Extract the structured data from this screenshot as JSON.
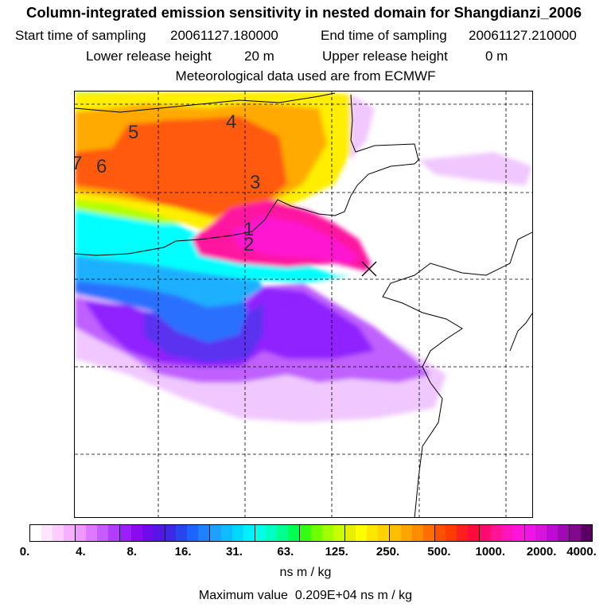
{
  "header": {
    "title": "Column-integrated emission sensitivity in nested domain for Shangdianzi_2006",
    "start_label": "Start time of sampling",
    "start_value": "20061127.180000",
    "end_label": "End time of sampling",
    "end_value": "20061127.210000",
    "lower_label": "Lower release height",
    "lower_value": "20 m",
    "upper_label": "Upper release height",
    "upper_value": "0 m",
    "met_line": "Meteorological data used are from ECMWF"
  },
  "map": {
    "release_marker": "release-site-cross-icon",
    "contour_labels": [
      "5",
      "4",
      "7",
      "6",
      "3",
      "1",
      "2"
    ]
  },
  "colorbar": {
    "ticks": [
      "0.",
      "4.",
      "8.",
      "16.",
      "31.",
      "63.",
      "125.",
      "250.",
      "500.",
      "1000.",
      "2000.",
      "4000."
    ],
    "unit": "ns m / kg",
    "swatches": [
      "#ffffff",
      "#ffe6ff",
      "#ffcdff",
      "#f7b0ff",
      "#ef98ff",
      "#de78ff",
      "#c65cff",
      "#b23cff",
      "#9b1eff",
      "#8c0af0",
      "#6e0aeb",
      "#5516e6",
      "#3c28e6",
      "#2846f0",
      "#1e64ff",
      "#1e82ff",
      "#1ea0ff",
      "#10bcff",
      "#00d8ff",
      "#00f0ff",
      "#00ffe6",
      "#00ffc0",
      "#00ff8c",
      "#00ff50",
      "#32ff14",
      "#6eff00",
      "#a0ff00",
      "#c8ff00",
      "#e6f000",
      "#ffff00",
      "#ffe600",
      "#ffd200",
      "#ffbe00",
      "#ffa500",
      "#ff8c00",
      "#ff6e00",
      "#ff5000",
      "#ff3c00",
      "#ff1e1e",
      "#ff0a3c",
      "#ff0a6e",
      "#ff1496",
      "#ff14be",
      "#ff14dc",
      "#f014e6",
      "#d714dc",
      "#be0ad2",
      "#a00ab4",
      "#82088c",
      "#5a0064"
    ],
    "maximum_label": "Maximum value",
    "maximum_value": "0.209E+04",
    "maximum_unit": "ns m / kg"
  },
  "colors": {
    "white": "#ffffff",
    "lavender": "#f0c8ff",
    "violet": "#c060ff",
    "purple": "#9020ff",
    "indigo": "#5a32f0",
    "blue": "#2a70ff",
    "sky": "#1ab0ff",
    "cyan": "#00ffff",
    "green": "#10ff40",
    "lime": "#b0ff00",
    "yellow": "#ffee00",
    "orange": "#ffaa00",
    "redorange": "#ff5a10",
    "magenta": "#ff14a0",
    "fuchsia": "#ff14d0"
  }
}
